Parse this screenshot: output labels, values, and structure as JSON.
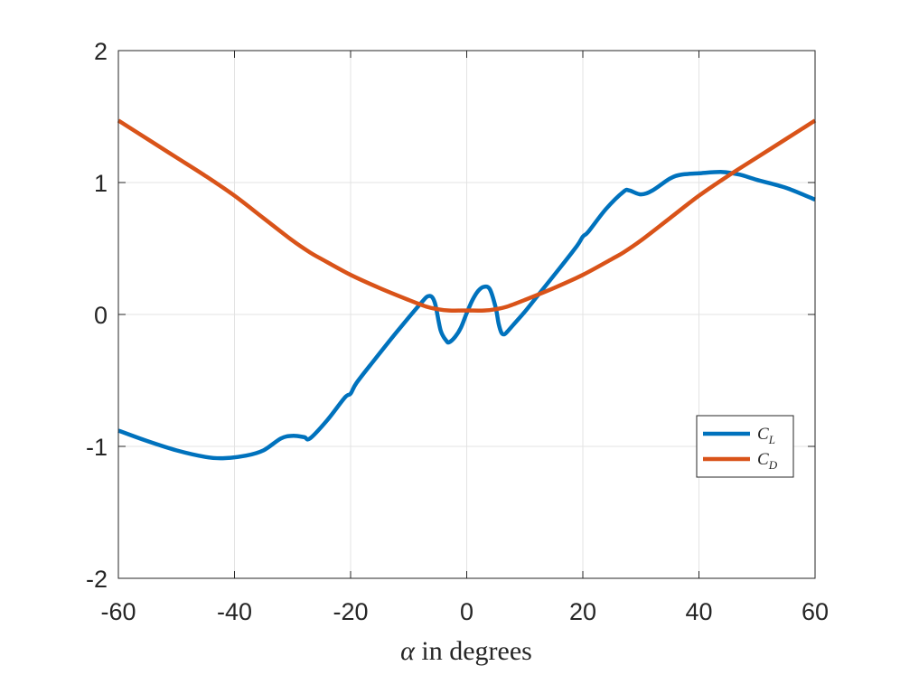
{
  "chart_data": {
    "type": "line",
    "title": "",
    "xlabel_symbol": "α",
    "xlabel_text": " in degrees",
    "ylabel": "",
    "xlim": [
      -60,
      60
    ],
    "ylim": [
      -2,
      2
    ],
    "xticks": [
      -60,
      -40,
      -20,
      0,
      20,
      40,
      60
    ],
    "yticks": [
      -2,
      -1,
      0,
      1,
      2
    ],
    "xtick_labels": [
      "-60",
      "-40",
      "-20",
      "0",
      "20",
      "40",
      "60"
    ],
    "ytick_labels": [
      "-2",
      "-1",
      "0",
      "1",
      "2"
    ],
    "grid": true,
    "legend_position": "lower-right",
    "series": [
      {
        "name": "C",
        "subscript": "L",
        "color": "#0072BD",
        "x": [
          -60,
          -55,
          -50,
          -45,
          -42,
          -38,
          -35,
          -32,
          -30,
          -28,
          -27,
          -24,
          -21,
          -20,
          -19,
          -16,
          -12,
          -8,
          -6.5,
          -5.5,
          -4.5,
          -3.5,
          -3,
          -2,
          -1,
          0,
          1,
          2,
          3,
          4,
          5,
          5.5,
          6,
          6.5,
          7,
          8,
          10,
          12,
          16,
          19,
          20,
          21,
          24,
          27,
          28,
          30,
          32,
          35,
          37,
          40,
          44,
          47,
          50,
          55,
          60
        ],
        "y": [
          -0.88,
          -0.96,
          -1.03,
          -1.08,
          -1.09,
          -1.07,
          -1.03,
          -0.94,
          -0.92,
          -0.93,
          -0.94,
          -0.8,
          -0.63,
          -0.6,
          -0.52,
          -0.35,
          -0.13,
          0.08,
          0.14,
          0.09,
          -0.12,
          -0.2,
          -0.21,
          -0.17,
          -0.1,
          0.01,
          0.11,
          0.18,
          0.21,
          0.19,
          0.05,
          -0.07,
          -0.14,
          -0.15,
          -0.13,
          -0.08,
          0.02,
          0.13,
          0.35,
          0.52,
          0.59,
          0.63,
          0.8,
          0.93,
          0.94,
          0.91,
          0.94,
          1.03,
          1.06,
          1.07,
          1.08,
          1.06,
          1.02,
          0.96,
          0.87
        ]
      },
      {
        "name": "C",
        "subscript": "D",
        "color": "#D95319",
        "x": [
          -60,
          -55,
          -50,
          -45,
          -40,
          -35,
          -30,
          -27,
          -25,
          -20,
          -15,
          -10,
          -7,
          -5,
          -3,
          0,
          3,
          5,
          7,
          10,
          15,
          20,
          25,
          27,
          30,
          35,
          40,
          45,
          50,
          55,
          60
        ],
        "y": [
          1.47,
          1.33,
          1.19,
          1.05,
          0.9,
          0.73,
          0.56,
          0.47,
          0.42,
          0.3,
          0.2,
          0.11,
          0.06,
          0.04,
          0.03,
          0.03,
          0.03,
          0.04,
          0.06,
          0.11,
          0.2,
          0.3,
          0.42,
          0.47,
          0.56,
          0.73,
          0.9,
          1.05,
          1.19,
          1.33,
          1.47
        ]
      }
    ]
  }
}
